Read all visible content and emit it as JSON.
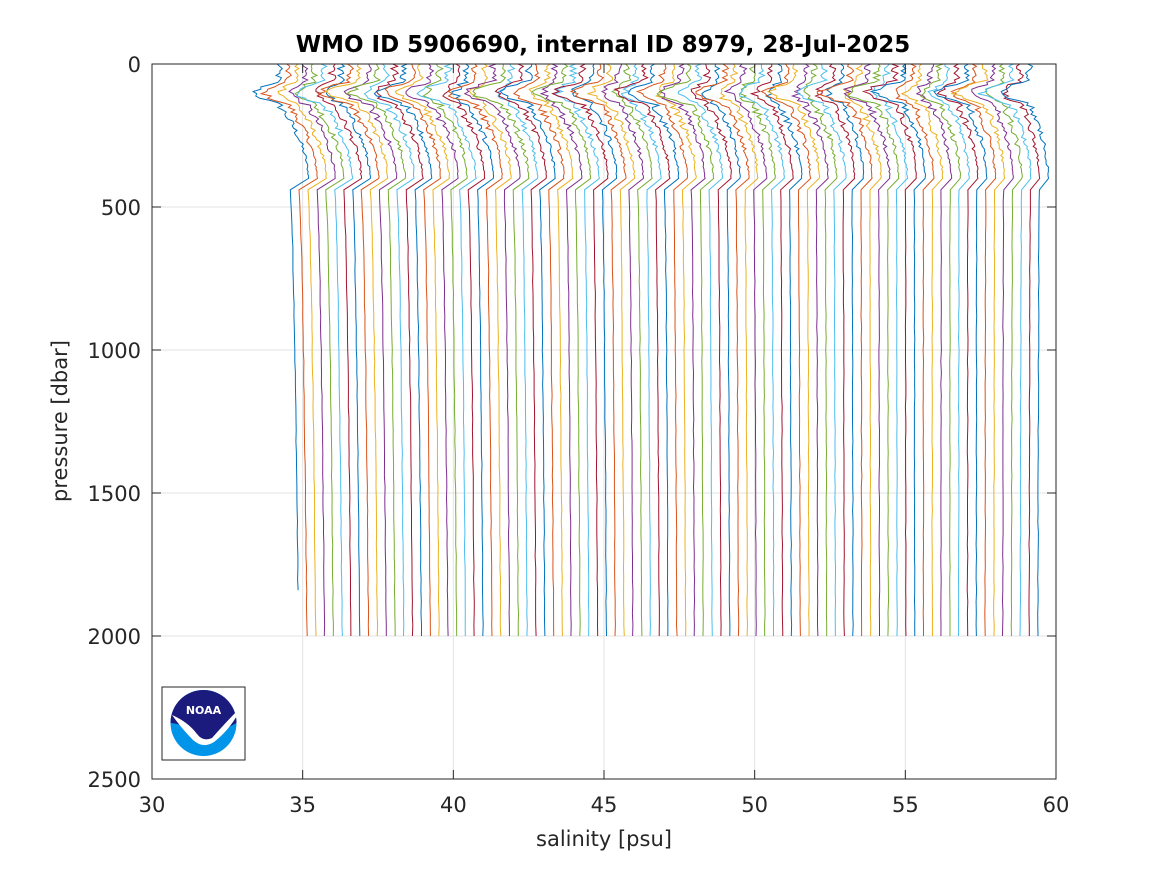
{
  "chart_data": {
    "type": "line",
    "title": "WMO ID 5906690, internal ID 8979, 28-Jul-2025",
    "xlabel": "salinity [psu]",
    "ylabel": "pressure [dbar]",
    "xlim": [
      30,
      60
    ],
    "ylim": [
      0,
      2500
    ],
    "y_reversed": true,
    "grid": true,
    "legend": "none",
    "x_ticks": [
      "30",
      "35",
      "40",
      "45",
      "50",
      "55",
      "60"
    ],
    "y_ticks": [
      "0",
      "500",
      "1000",
      "1500",
      "2000",
      "2500"
    ],
    "series_colors": [
      "#0072bd",
      "#d95319",
      "#edb120",
      "#7e2f8e",
      "#77ac30",
      "#4dbeee",
      "#a2142f"
    ],
    "profile_count": 85,
    "profile_offset_start_psu": 34.2,
    "profile_offset_end_psu": 59.1,
    "deep_values_psu": {
      "surface_min": 34.2,
      "surface_max": 59.1,
      "bottom_min": 34.85,
      "bottom_max": 59.4
    },
    "max_pressure_dbar": 2000,
    "short_profile_max_pressure_dbar": 1870
  },
  "logo": {
    "text": "NOAA",
    "colors": {
      "navy": "#1b1b7e",
      "sky": "#0095e8",
      "white": "#ffffff"
    }
  }
}
